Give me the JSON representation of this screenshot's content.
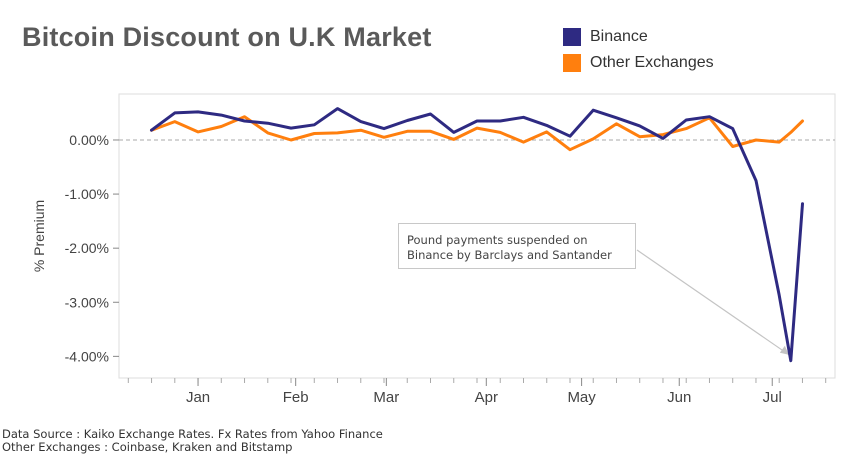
{
  "chart_data": {
    "type": "line",
    "title": "Bitcoin Discount on U.K Market",
    "ylabel": "% Premium",
    "xlabel": "",
    "ylim": [
      -4.4,
      0.85
    ],
    "yticks": [
      0,
      -1,
      -2,
      -3,
      -4
    ],
    "ytick_labels": [
      "0.00%",
      "-1.00%",
      "-2.00%",
      "-3.00%",
      "-4.00%"
    ],
    "x_ticks": [
      {
        "label": "Jan",
        "pos": 2.0
      },
      {
        "label": "Feb",
        "pos": 6.2
      },
      {
        "label": "Mar",
        "pos": 10.1
      },
      {
        "label": "Apr",
        "pos": 14.4
      },
      {
        "label": "May",
        "pos": 18.5
      },
      {
        "label": "Jun",
        "pos": 22.7
      },
      {
        "label": "Jul",
        "pos": 26.7
      }
    ],
    "xlim": [
      -1.4,
      29.4
    ],
    "x": [
      0,
      1,
      2,
      3,
      4,
      5,
      6,
      7,
      8,
      9,
      10,
      11,
      12,
      13,
      14,
      15,
      16,
      17,
      18,
      19,
      20,
      21,
      22,
      23,
      24,
      25,
      26,
      27,
      27.5,
      28
    ],
    "series": [
      {
        "name": "Binance",
        "color": "#2e2a82",
        "values": [
          0.18,
          0.5,
          0.52,
          0.46,
          0.35,
          0.31,
          0.22,
          0.28,
          0.58,
          0.34,
          0.21,
          0.36,
          0.48,
          0.14,
          0.35,
          0.35,
          0.42,
          0.27,
          0.07,
          0.55,
          0.41,
          0.26,
          0.03,
          0.37,
          0.43,
          0.21,
          -0.75,
          -2.87,
          -4.08,
          -1.18
        ]
      },
      {
        "name": "Other Exchanges",
        "color": "#ff7f0e",
        "values": [
          0.18,
          0.34,
          0.15,
          0.25,
          0.43,
          0.13,
          0.0,
          0.12,
          0.13,
          0.18,
          0.05,
          0.16,
          0.16,
          0.01,
          0.22,
          0.14,
          -0.04,
          0.15,
          -0.18,
          0.02,
          0.3,
          0.06,
          0.1,
          0.21,
          0.41,
          -0.12,
          0.0,
          -0.04,
          0.14,
          0.35
        ]
      }
    ],
    "reference_line": {
      "y": 0,
      "style": "dashed"
    },
    "legend_position": "top-right",
    "grid": false,
    "annotation": {
      "lines": [
        "Pound payments suspended on",
        "Binance by Barclays and Santander"
      ],
      "points_to": {
        "x": 27.5,
        "y": -4.08
      }
    },
    "footnotes": [
      "Data Source : Kaiko Exchange Rates. Fx Rates from Yahoo Finance",
      "Other Exchanges : Coinbase, Kraken and Bitstamp"
    ]
  }
}
